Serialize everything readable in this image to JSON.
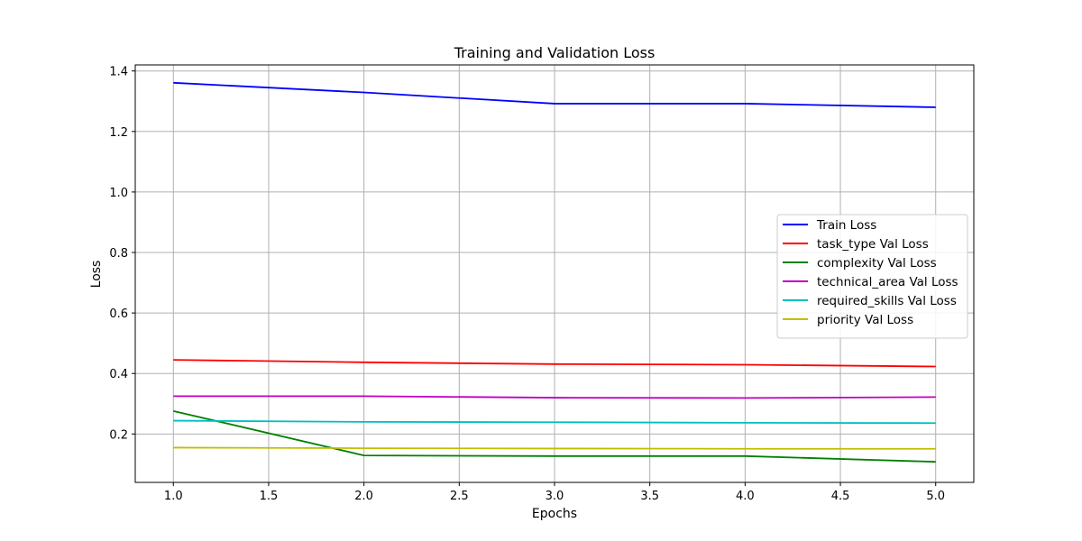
{
  "chart_data": {
    "type": "line",
    "title": "Training and Validation Loss",
    "xlabel": "Epochs",
    "ylabel": "Loss",
    "xlim": [
      0.8,
      5.2
    ],
    "ylim": [
      0.04,
      1.42
    ],
    "xticks": [
      "1.0",
      "1.5",
      "2.0",
      "2.5",
      "3.0",
      "3.5",
      "4.0",
      "4.5",
      "5.0"
    ],
    "yticks": [
      "0.2",
      "0.4",
      "0.6",
      "0.8",
      "1.0",
      "1.2",
      "1.4"
    ],
    "grid": true,
    "legend_position": "center-right",
    "x": [
      1,
      2,
      3,
      4,
      5
    ],
    "series": [
      {
        "name": "Train Loss",
        "color": "#0000ff",
        "values": [
          1.361,
          1.329,
          1.292,
          1.292,
          1.28
        ]
      },
      {
        "name": "task_type Val Loss",
        "color": "#ff0000",
        "values": [
          0.445,
          0.437,
          0.431,
          0.429,
          0.423
        ]
      },
      {
        "name": "complexity Val Loss",
        "color": "#008000",
        "values": [
          0.276,
          0.129,
          0.127,
          0.127,
          0.108
        ]
      },
      {
        "name": "technical_area Val Loss",
        "color": "#bf00bf",
        "values": [
          0.325,
          0.325,
          0.32,
          0.319,
          0.322
        ]
      },
      {
        "name": "required_skills Val Loss",
        "color": "#00bfbf",
        "values": [
          0.244,
          0.24,
          0.239,
          0.237,
          0.236
        ]
      },
      {
        "name": "priority Val Loss",
        "color": "#bfbf00",
        "values": [
          0.155,
          0.153,
          0.152,
          0.151,
          0.151
        ]
      }
    ]
  }
}
